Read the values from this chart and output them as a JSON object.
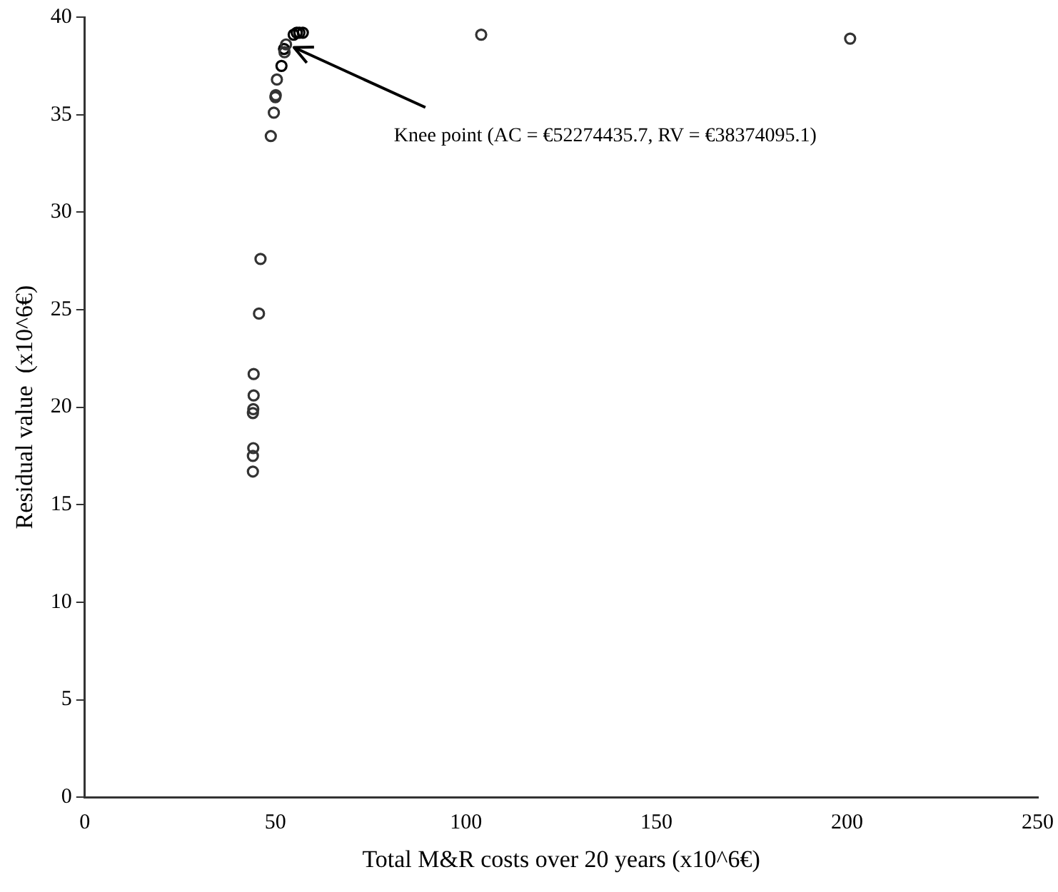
{
  "chart_data": {
    "type": "scatter",
    "xlabel": "Total M&R costs over 20 years (x10^6€)",
    "ylabel": "Residual value  (x10^6€)",
    "xlim": [
      0,
      250
    ],
    "ylim": [
      0,
      40
    ],
    "xticks": [
      0,
      50,
      100,
      150,
      200,
      250
    ],
    "yticks": [
      0,
      5,
      10,
      15,
      20,
      25,
      30,
      35,
      40
    ],
    "grid": false,
    "legend": false,
    "marker": "circle",
    "series": [
      {
        "color": "#333333",
        "x": [
          44.1,
          44.1,
          44.2,
          44.1,
          44.2,
          44.3,
          44.3,
          45.7,
          46.1,
          48.8,
          49.6,
          50,
          50.1,
          50.4,
          52.4,
          52.8,
          104,
          200.8
        ],
        "values": [
          16.7,
          17.5,
          17.9,
          19.7,
          19.9,
          20.6,
          21.7,
          24.8,
          27.6,
          33.9,
          35.1,
          35.9,
          36,
          36.8,
          38.2,
          38.6,
          39.1,
          38.9
        ]
      },
      {
        "color": "#000000",
        "x": [
          51.6,
          52.27,
          54.8,
          55.6,
          56.3,
          57.2
        ],
        "values": [
          37.5,
          38.37,
          39.1,
          39.2,
          39.2,
          39.2
        ]
      }
    ],
    "annotations": [
      {
        "text": "Knee point (AC = €52274435.7, RV = €38374095.1)",
        "x": 52.27,
        "y": 38.37
      }
    ]
  }
}
